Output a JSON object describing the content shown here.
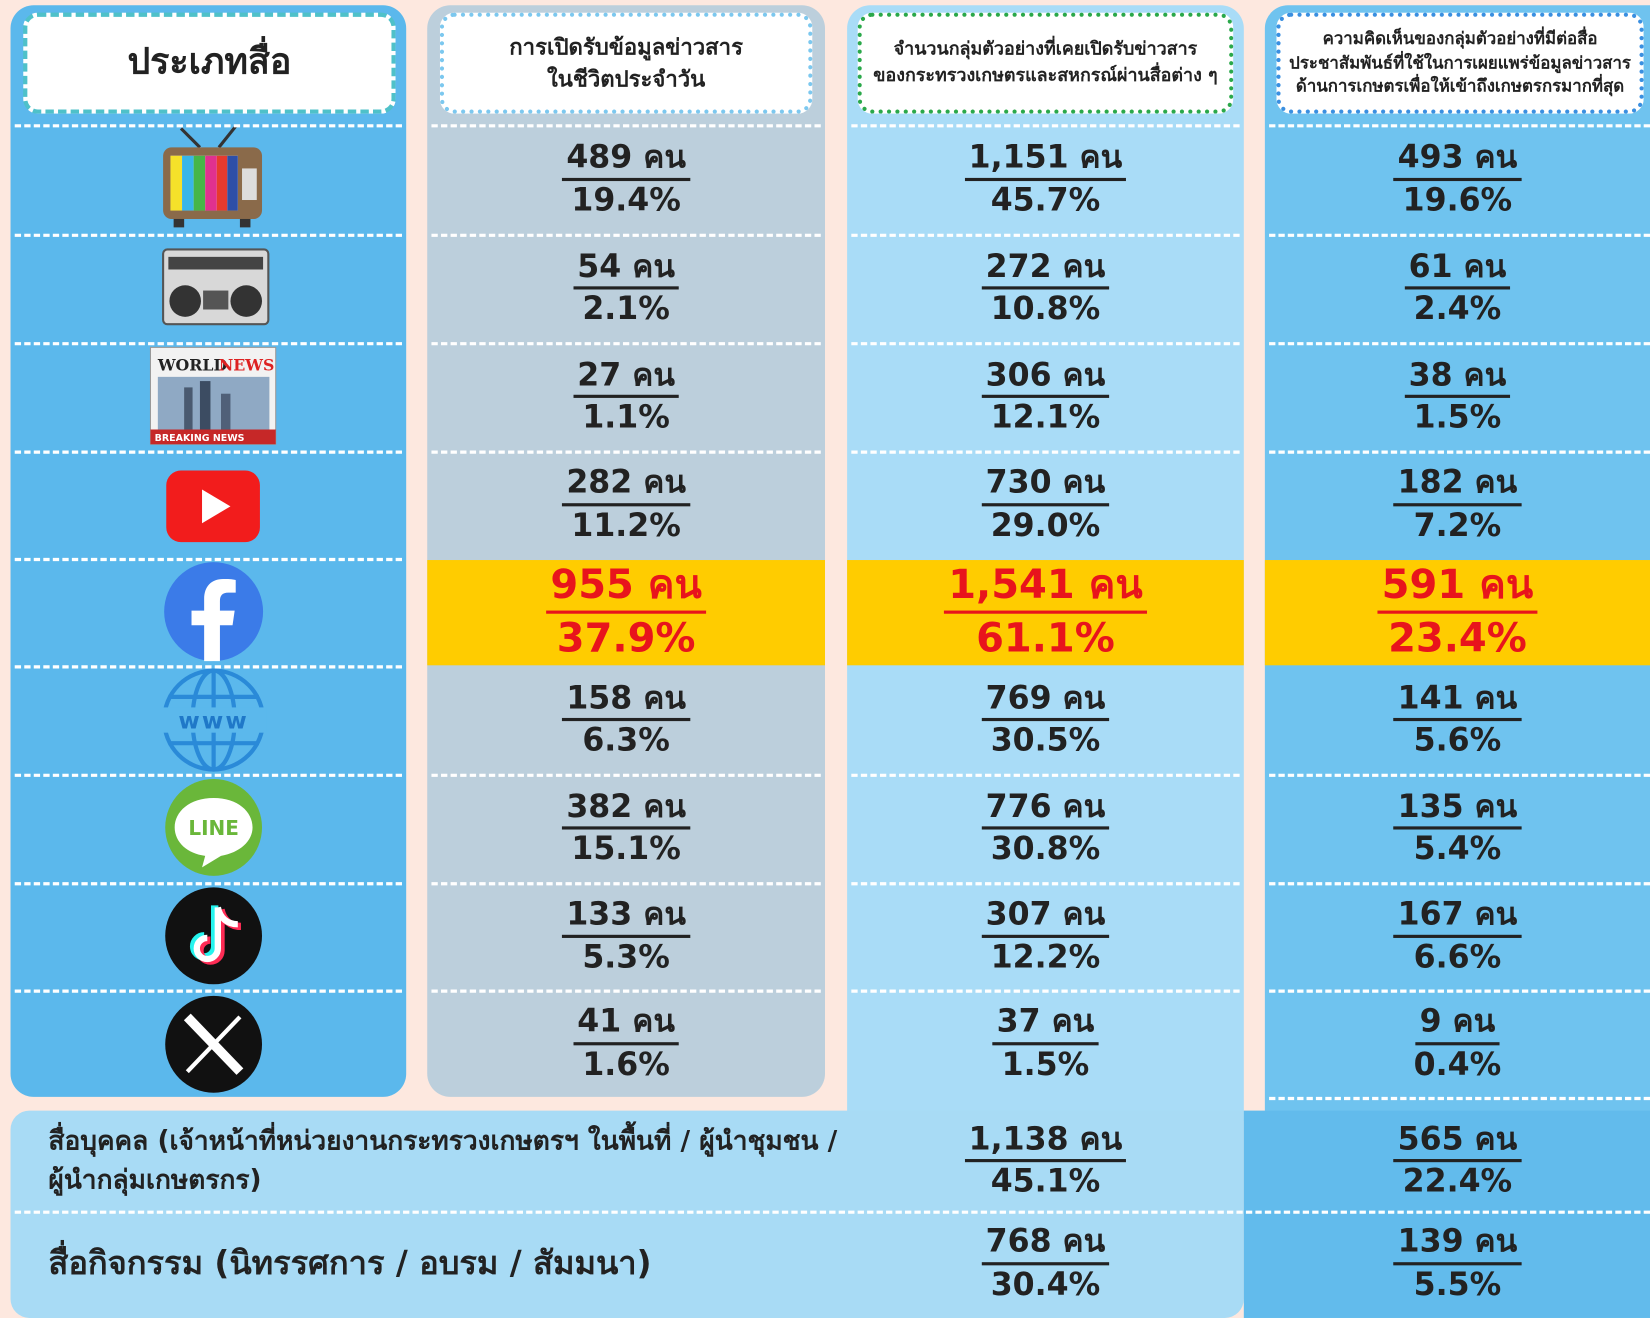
{
  "header": {
    "media_type": "ประเภทสื่อ",
    "daily_exposure": [
      "การเปิดรับข้อมูลข่าวสาร",
      "ในชีวิตประจำวัน"
    ],
    "ministry_exposure": [
      "จำนวนกลุ่มตัวอย่างที่เคยเปิดรับข่าวสาร",
      "ของกระทรวงเกษตรและสหกรณ์ผ่านสื่อต่าง ๆ"
    ],
    "opinion": [
      "ความคิดเห็นของกลุ่มตัวอย่างที่มีต่อสื่อ",
      "ประชาสัมพันธ์ที่ใช้ในการเผยแพร่ข้อมูลข่าวสาร",
      "ด้านการเกษตรเพื่อให้เข้าถึงเกษตรกรมากที่สุด"
    ]
  },
  "icons": {
    "newspaper": [
      "WORLD",
      "NEWS"
    ],
    "breaking": "BREAKING NEWS",
    "web": "www",
    "line": "LINE"
  },
  "rows": [
    {
      "daily": [
        "489 คน",
        "19.4%"
      ],
      "ministry": [
        "1,151 คน",
        "45.7%"
      ],
      "opinion": [
        "493 คน",
        "19.6%"
      ]
    },
    {
      "daily": [
        "54 คน",
        "2.1%"
      ],
      "ministry": [
        "272 คน",
        "10.8%"
      ],
      "opinion": [
        "61 คน",
        "2.4%"
      ]
    },
    {
      "daily": [
        "27 คน",
        "1.1%"
      ],
      "ministry": [
        "306 คน",
        "12.1%"
      ],
      "opinion": [
        "38 คน",
        "1.5%"
      ]
    },
    {
      "daily": [
        "282 คน",
        "11.2%"
      ],
      "ministry": [
        "730 คน",
        "29.0%"
      ],
      "opinion": [
        "182 คน",
        "7.2%"
      ]
    },
    {
      "daily": [
        "955 คน",
        "37.9%"
      ],
      "ministry": [
        "1,541 คน",
        "61.1%"
      ],
      "opinion": [
        "591 คน",
        "23.4%"
      ]
    },
    {
      "daily": [
        "158 คน",
        "6.3%"
      ],
      "ministry": [
        "769 คน",
        "30.5%"
      ],
      "opinion": [
        "141 คน",
        "5.6%"
      ]
    },
    {
      "daily": [
        "382 คน",
        "15.1%"
      ],
      "ministry": [
        "776 คน",
        "30.8%"
      ],
      "opinion": [
        "135 คน",
        "5.4%"
      ]
    },
    {
      "daily": [
        "133 คน",
        "5.3%"
      ],
      "ministry": [
        "307 คน",
        "12.2%"
      ],
      "opinion": [
        "167 คน",
        "6.6%"
      ]
    },
    {
      "daily": [
        "41 คน",
        "1.6%"
      ],
      "ministry": [
        "37 คน",
        "1.5%"
      ],
      "opinion": [
        "9 คน",
        "0.4%"
      ]
    }
  ],
  "other_rows": [
    {
      "label": [
        "สื่อบุคคล (เจ้าหน้าที่หน่วยงานกระทรวงเกษตรฯ ในพื้นที่ / ผู้นำชุมชน /",
        "ผู้นำกลุ่มเกษตรกร)"
      ],
      "ministry": [
        "1,138 คน",
        "45.1%"
      ],
      "opinion": [
        "565 คน",
        "22.4%"
      ]
    },
    {
      "label": [
        "สื่อกิจกรรม (นิทรรศการ / อบรม / สัมมนา)"
      ],
      "ministry": [
        "768 คน",
        "30.4%"
      ],
      "opinion": [
        "139 คน",
        "5.5%"
      ]
    }
  ]
}
